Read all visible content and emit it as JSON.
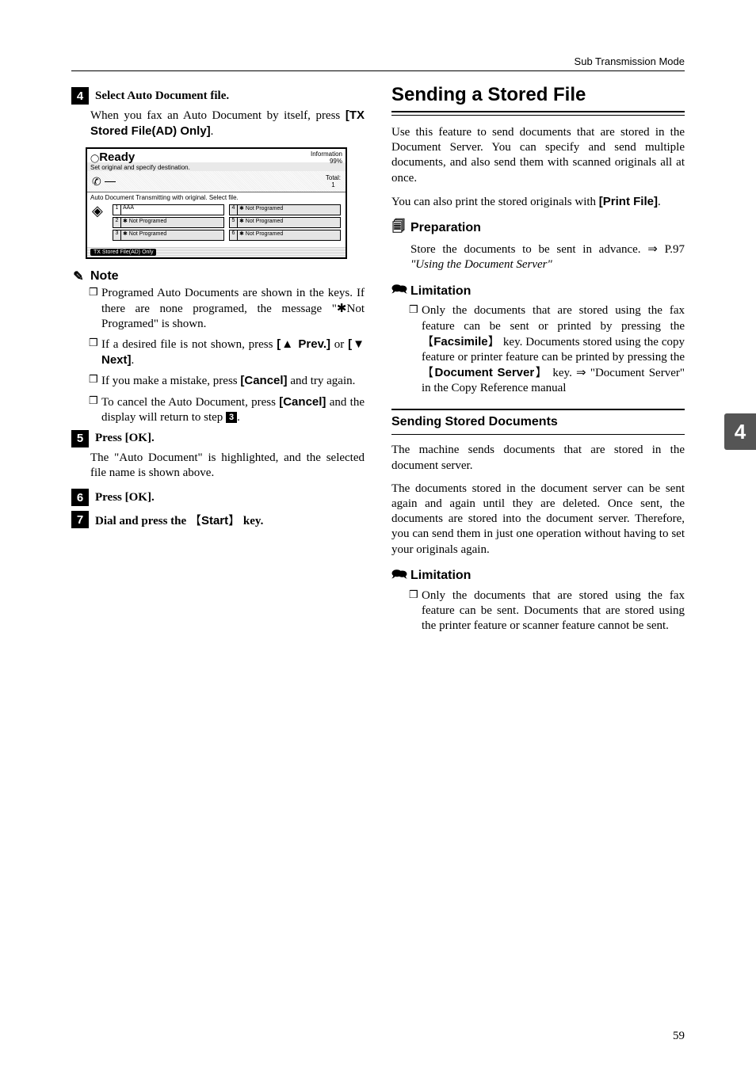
{
  "header": {
    "section_title": "Sub Transmission Mode"
  },
  "page_tab": "4",
  "page_number": "59",
  "left": {
    "step4": {
      "num": "4",
      "title": "Select Auto Document file.",
      "para": "When you fax an Auto Document by itself, press ",
      "btn": "[TX Stored File(AD) Only]",
      "after": "."
    },
    "screen": {
      "ready": "Ready",
      "ready_sub": "Set original and specify destination.",
      "info": "Information",
      "info_pct": "99%",
      "total_lbl": "Total:",
      "total_val": "1",
      "row2": "Auto Document    Transmitting with original. Select file.",
      "cells": [
        {
          "n": "1",
          "t": "AAA",
          "shaded": false
        },
        {
          "n": "4",
          "t": "✱ Not Programed",
          "shaded": true
        },
        {
          "n": "2",
          "t": "✱ Not Programed",
          "shaded": true
        },
        {
          "n": "5",
          "t": "✱ Not Programed",
          "shaded": true
        },
        {
          "n": "3",
          "t": "✱ Not Programed",
          "shaded": true
        },
        {
          "n": "6",
          "t": "✱ Not Programed",
          "shaded": true
        }
      ],
      "bot_btn": "TX Stored File(AD) Only"
    },
    "note": {
      "label": "Note",
      "items": [
        {
          "pre": "Programed Auto Documents are shown in the keys. If there are none programed, the message \"",
          "mid": "✱",
          "post": "Not Programed\" is shown."
        },
        {
          "pre": "If a desired file is not shown, press ",
          "b1": "[▲ Prev.]",
          "mid2": " or ",
          "b2": "[▼ Next]",
          "post2": "."
        },
        {
          "pre": "If you make a mistake, press ",
          "b1": "[Cancel]",
          "post": " and try again."
        },
        {
          "pre": "To cancel the Auto Document, press ",
          "b1": "[Cancel]",
          "mid2": " and the display will return to step ",
          "stepref": "3",
          "post2": "."
        }
      ]
    },
    "step5": {
      "num": "5",
      "title": "Press [OK].",
      "para": "The \"Auto Document\" is highlighted, and the selected file name is shown above."
    },
    "step6": {
      "num": "6",
      "title": "Press [OK]."
    },
    "step7": {
      "num": "7",
      "pre": "Dial and press the ",
      "key": "Start",
      "post": " key."
    }
  },
  "right": {
    "h2": "Sending a Stored File",
    "p1": "Use this feature to send documents that are stored in the Document Server.  You can specify and send multiple documents, and also send them with scanned originals all at once.",
    "p2a": "You can also print the stored originals with ",
    "p2b": "[Print File]",
    "p2c": ".",
    "prep": {
      "label": "Preparation",
      "text_a": "Store the documents to be sent in advance. ⇒ P.97 ",
      "text_i": "\"Using the Document Server\""
    },
    "limit1": {
      "label": "Limitation",
      "text_a": "Only the documents that are stored using the fax feature can be sent or printed by pressing the ",
      "key1": "Facsimile",
      "text_b": " key. Documents stored using the copy feature or printer feature can be printed by pressing the ",
      "key2": "Document Server",
      "text_c": " key. ⇒ \"Document Server\" in the Copy Reference manual"
    },
    "h3": "Sending Stored Documents",
    "p3": "The machine sends documents that are stored in the document server.",
    "p4": "The documents stored in the document server can be sent again and again until they are deleted. Once sent, the documents are stored into the document server. Therefore, you can send them in just one operation without having to set your originals again.",
    "limit2": {
      "label": "Limitation",
      "text": "Only the documents that are stored using the fax feature can be sent. Documents that are stored using the printer feature or scanner feature cannot be sent."
    }
  }
}
